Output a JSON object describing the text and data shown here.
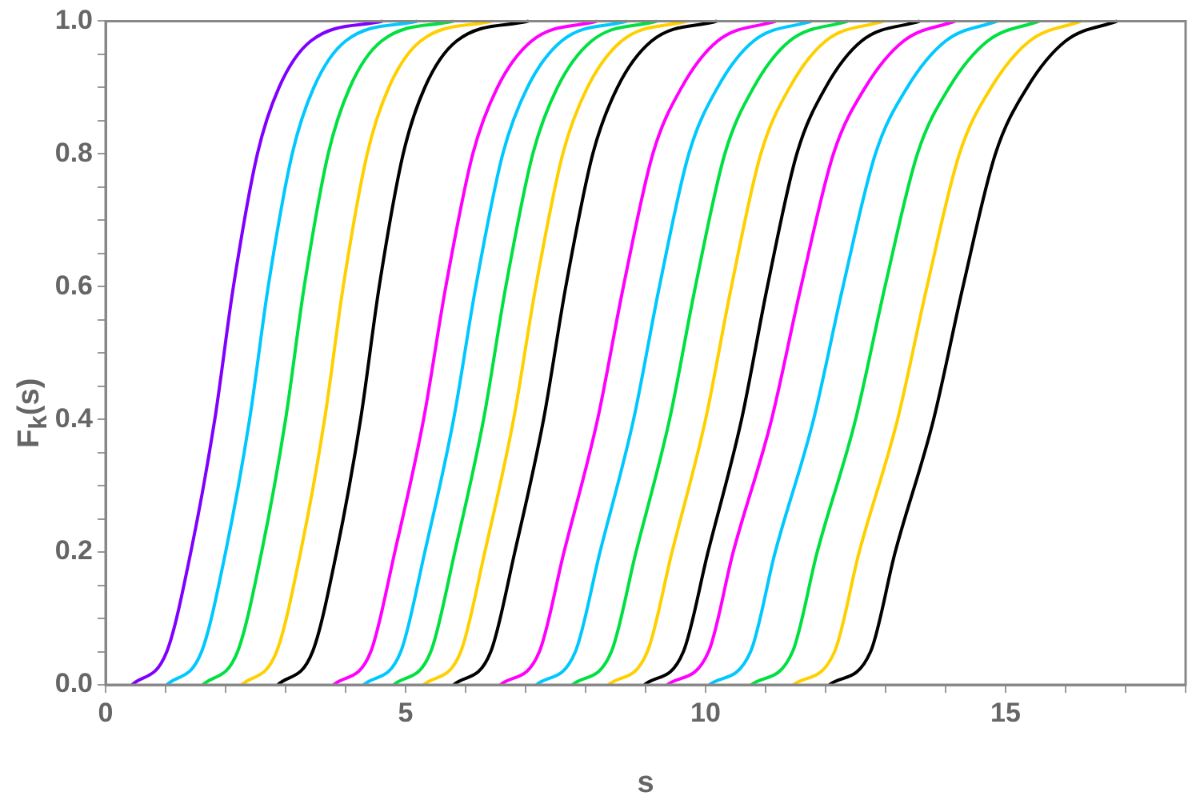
{
  "chart_data": {
    "type": "line",
    "xlabel": "s",
    "ylabel": "F$_{k}$(s)",
    "xlim": [
      0,
      18
    ],
    "ylim": [
      0,
      1
    ],
    "xticks": [
      0,
      {
        "value": 1,
        "label": null
      },
      {
        "value": 2,
        "label": null
      },
      {
        "value": 3,
        "label": null
      },
      {
        "value": 4,
        "label": null
      },
      5,
      {
        "value": 6,
        "label": null
      },
      {
        "value": 7,
        "label": null
      },
      {
        "value": 8,
        "label": null
      },
      {
        "value": 9,
        "label": null
      },
      10,
      {
        "value": 11,
        "label": null
      },
      {
        "value": 12,
        "label": null
      },
      {
        "value": 13,
        "label": null
      },
      {
        "value": 14,
        "label": null
      },
      15,
      {
        "value": 16,
        "label": null
      },
      {
        "value": 17,
        "label": null
      },
      {
        "value": 18,
        "label": null
      }
    ],
    "yticks": [
      {
        "value": 0,
        "label": "0.0"
      },
      {
        "value": 0.05,
        "label": null
      },
      {
        "value": 0.1,
        "label": null
      },
      {
        "value": 0.15,
        "label": null
      },
      {
        "value": 0.2,
        "label": "0.2"
      },
      {
        "value": 0.25,
        "label": null
      },
      {
        "value": 0.3,
        "label": null
      },
      {
        "value": 0.35,
        "label": null
      },
      {
        "value": 0.4,
        "label": "0.4"
      },
      {
        "value": 0.45,
        "label": null
      },
      {
        "value": 0.5,
        "label": null
      },
      {
        "value": 0.55,
        "label": null
      },
      {
        "value": 0.6,
        "label": "0.6"
      },
      {
        "value": 0.65,
        "label": null
      },
      {
        "value": 0.7,
        "label": null
      },
      {
        "value": 0.75,
        "label": null
      },
      {
        "value": 0.8,
        "label": "0.8"
      },
      {
        "value": 0.85,
        "label": null
      },
      {
        "value": 0.9,
        "label": null
      },
      {
        "value": 0.95,
        "label": null
      },
      {
        "value": 1,
        "label": "1.0"
      }
    ],
    "grid": false,
    "legend": false,
    "marker": "none",
    "line_style": "solid",
    "series": [
      {
        "color": "#8000ff",
        "x": [
          0.44,
          1.02,
          1.42,
          1.82,
          2.13,
          2.53,
          2.89,
          3.42,
          4.62
        ],
        "values": [
          0,
          0.05,
          0.2,
          0.4,
          0.6,
          0.8,
          0.9,
          0.97,
          1
        ]
      },
      {
        "color": "#00c8ff",
        "x": [
          1.02,
          1.6,
          2.0,
          2.4,
          2.71,
          3.11,
          3.47,
          4.0,
          5.2
        ],
        "values": [
          0,
          0.05,
          0.2,
          0.4,
          0.6,
          0.8,
          0.9,
          0.97,
          1
        ]
      },
      {
        "color": "#00e040",
        "x": [
          1.62,
          2.2,
          2.6,
          3.0,
          3.31,
          3.71,
          4.07,
          4.6,
          5.8
        ],
        "values": [
          0,
          0.05,
          0.2,
          0.4,
          0.6,
          0.8,
          0.9,
          0.97,
          1
        ]
      },
      {
        "color": "#ffd000",
        "x": [
          2.27,
          2.85,
          3.25,
          3.65,
          3.96,
          4.36,
          4.72,
          5.25,
          6.45
        ],
        "values": [
          0,
          0.05,
          0.2,
          0.4,
          0.6,
          0.8,
          0.9,
          0.97,
          1
        ]
      },
      {
        "color": "#000000",
        "x": [
          2.87,
          3.45,
          3.85,
          4.25,
          4.56,
          4.96,
          5.32,
          5.85,
          7.05
        ],
        "values": [
          0,
          0.05,
          0.2,
          0.4,
          0.6,
          0.8,
          0.9,
          0.97,
          1
        ]
      },
      {
        "color": "#ff00ff",
        "x": [
          3.8,
          4.42,
          4.82,
          5.3,
          5.67,
          6.12,
          6.53,
          7.1,
          8.19
        ],
        "values": [
          0,
          0.05,
          0.2,
          0.4,
          0.6,
          0.8,
          0.9,
          0.97,
          1
        ]
      },
      {
        "color": "#00c8ff",
        "x": [
          4.3,
          4.92,
          5.32,
          5.8,
          6.17,
          6.62,
          7.03,
          7.6,
          8.69
        ],
        "values": [
          0,
          0.05,
          0.2,
          0.4,
          0.6,
          0.8,
          0.9,
          0.97,
          1
        ]
      },
      {
        "color": "#00e040",
        "x": [
          4.8,
          5.42,
          5.82,
          6.3,
          6.67,
          7.12,
          7.53,
          8.1,
          9.19
        ],
        "values": [
          0,
          0.05,
          0.2,
          0.4,
          0.6,
          0.8,
          0.9,
          0.97,
          1
        ]
      },
      {
        "color": "#ffd000",
        "x": [
          5.3,
          5.92,
          6.32,
          6.8,
          7.17,
          7.62,
          8.03,
          8.6,
          9.69
        ],
        "values": [
          0,
          0.05,
          0.2,
          0.4,
          0.6,
          0.8,
          0.9,
          0.97,
          1
        ]
      },
      {
        "color": "#000000",
        "x": [
          5.8,
          6.42,
          6.82,
          7.3,
          7.67,
          8.12,
          8.53,
          9.1,
          10.19
        ],
        "values": [
          0,
          0.05,
          0.2,
          0.4,
          0.6,
          0.8,
          0.9,
          0.97,
          1
        ]
      },
      {
        "color": "#ff00ff",
        "x": [
          6.58,
          7.23,
          7.64,
          8.2,
          8.63,
          9.12,
          9.6,
          10.2,
          11.17
        ],
        "values": [
          0,
          0.05,
          0.2,
          0.4,
          0.6,
          0.8,
          0.9,
          0.97,
          1
        ]
      },
      {
        "color": "#00c8ff",
        "x": [
          7.18,
          7.83,
          8.24,
          8.8,
          9.23,
          9.72,
          10.2,
          10.8,
          11.77
        ],
        "values": [
          0,
          0.05,
          0.2,
          0.4,
          0.6,
          0.8,
          0.9,
          0.97,
          1
        ]
      },
      {
        "color": "#00e040",
        "x": [
          7.78,
          8.43,
          8.84,
          9.4,
          9.83,
          10.32,
          10.8,
          11.4,
          12.37
        ],
        "values": [
          0,
          0.05,
          0.2,
          0.4,
          0.6,
          0.8,
          0.9,
          0.97,
          1
        ]
      },
      {
        "color": "#ffd000",
        "x": [
          8.38,
          9.03,
          9.44,
          10.0,
          10.43,
          10.92,
          11.4,
          12.0,
          12.97
        ],
        "values": [
          0,
          0.05,
          0.2,
          0.4,
          0.6,
          0.8,
          0.9,
          0.97,
          1
        ]
      },
      {
        "color": "#000000",
        "x": [
          8.98,
          9.63,
          10.04,
          10.6,
          11.03,
          11.52,
          12.0,
          12.6,
          13.57
        ],
        "values": [
          0,
          0.05,
          0.2,
          0.4,
          0.6,
          0.8,
          0.9,
          0.97,
          1
        ]
      },
      {
        "color": "#ff00ff",
        "x": [
          9.36,
          10.05,
          10.46,
          11.1,
          11.59,
          12.13,
          12.66,
          13.3,
          14.16
        ],
        "values": [
          0,
          0.05,
          0.2,
          0.4,
          0.6,
          0.8,
          0.9,
          0.97,
          1
        ]
      },
      {
        "color": "#00c8ff",
        "x": [
          10.06,
          10.75,
          11.16,
          11.8,
          12.29,
          12.83,
          13.36,
          14.0,
          14.86
        ],
        "values": [
          0,
          0.05,
          0.2,
          0.4,
          0.6,
          0.8,
          0.9,
          0.97,
          1
        ]
      },
      {
        "color": "#00e040",
        "x": [
          10.76,
          11.45,
          11.86,
          12.5,
          12.99,
          13.53,
          14.06,
          14.7,
          15.56
        ],
        "values": [
          0,
          0.05,
          0.2,
          0.4,
          0.6,
          0.8,
          0.9,
          0.97,
          1
        ]
      },
      {
        "color": "#ffd000",
        "x": [
          11.46,
          12.15,
          12.56,
          13.2,
          13.69,
          14.23,
          14.76,
          15.4,
          16.26
        ],
        "values": [
          0,
          0.05,
          0.2,
          0.4,
          0.6,
          0.8,
          0.9,
          0.97,
          1
        ]
      },
      {
        "color": "#000000",
        "x": [
          12.06,
          12.75,
          13.16,
          13.8,
          14.29,
          14.83,
          15.36,
          16.0,
          16.86
        ],
        "values": [
          0,
          0.05,
          0.2,
          0.4,
          0.6,
          0.8,
          0.9,
          0.97,
          1
        ]
      }
    ]
  }
}
